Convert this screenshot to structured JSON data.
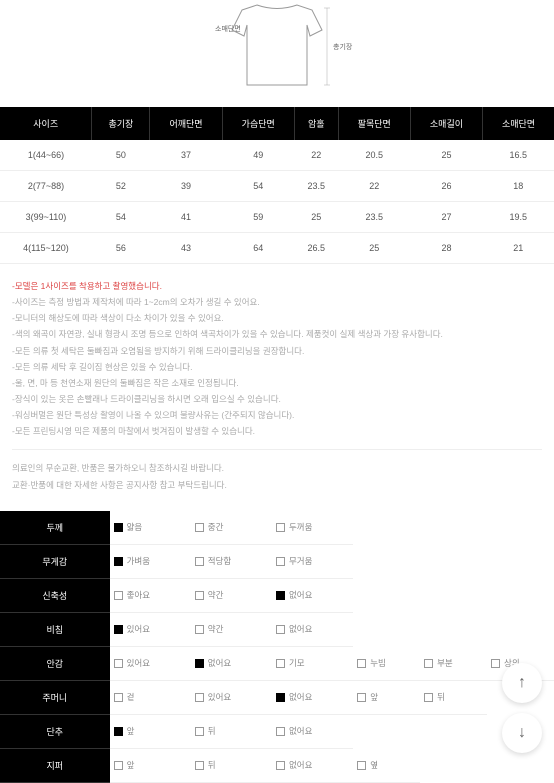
{
  "diagram": {
    "labels": {
      "shoulder": "소매단면",
      "length": "총기장"
    }
  },
  "sizeTable": {
    "headers": [
      "사이즈",
      "총기장",
      "어깨단면",
      "가슴단면",
      "암홀",
      "팔목단면",
      "소매길이",
      "소매단면"
    ],
    "rows": [
      [
        "1(44~66)",
        "50",
        "37",
        "49",
        "22",
        "20.5",
        "25",
        "16.5"
      ],
      [
        "2(77~88)",
        "52",
        "39",
        "54",
        "23.5",
        "22",
        "26",
        "18"
      ],
      [
        "3(99~110)",
        "54",
        "41",
        "59",
        "25",
        "23.5",
        "27",
        "19.5"
      ],
      [
        "4(115~120)",
        "56",
        "43",
        "64",
        "26.5",
        "25",
        "28",
        "21"
      ]
    ]
  },
  "notice": {
    "red": "-모델은 1사이즈를 착용하고 촬영했습니다.",
    "lines": [
      "-사이즈는 측정 방법과 제작처에 따라 1~2cm의 오차가 생길 수 있어요.",
      "-모니터의 해상도에 따라 색상이 다소 차이가 있을 수 있어요.",
      "-색의 왜곡이 자연광, 실내 형광시 조명 등으로 인하여 색곡차이가 있을 수 있습니다. 제품컷이 실제 색상과 가장 유사합니다.",
      "-모든 의류 첫 세탁은 둘빠짐과 오염됨을 방지하기 위해 드라이클리닝을 권장합니다.",
      "-모든 의류 세탁 후 길이짐 현상은 있을 수 있습니다.",
      "-울, 면, 마 등 천연소재 원단의 둘빠짐은 작은 소재로 인정됩니다.",
      "-장식이 있는 옷은 손빨래나 드라이클리닝을 하시면 오래 입으실 수 있습니다.",
      "-워싱버멀은 원단 특성상 촬영이 나올 수 있으며 불량사유는 (간주되지 않습니다).",
      "-모든 프린팅시영 믹은 제품의 마찰에서 벗겨짐이 발생할 수 있습니다."
    ],
    "footer": [
      "의료인의 무순교환, 반품은 물가하오니 참조하시길 바랍니다.",
      "교환·반품에 대한 자세한 사항은 공지사항 참고 부탁드립니다."
    ]
  },
  "attributes": {
    "rows": [
      {
        "label": "두께",
        "opts": [
          [
            "얇음",
            true
          ],
          [
            "중간",
            false
          ],
          [
            "두꺼움",
            false
          ]
        ]
      },
      {
        "label": "무게감",
        "opts": [
          [
            "가벼움",
            true
          ],
          [
            "적당함",
            false
          ],
          [
            "무거움",
            false
          ]
        ]
      },
      {
        "label": "신축성",
        "opts": [
          [
            "좋아요",
            false
          ],
          [
            "약간",
            false
          ],
          [
            "없어요",
            true
          ]
        ]
      },
      {
        "label": "비침",
        "opts": [
          [
            "있어요",
            true
          ],
          [
            "약간",
            false
          ],
          [
            "없어요",
            false
          ]
        ]
      },
      {
        "label": "안감",
        "opts": [
          [
            "있어요",
            false
          ],
          [
            "없어요",
            true
          ],
          [
            "기모",
            false
          ],
          [
            "누빔",
            false
          ],
          [
            "부분",
            false
          ],
          [
            "상의",
            false
          ]
        ]
      },
      {
        "label": "주머니",
        "opts": [
          [
            "겉",
            false
          ],
          [
            "있어요",
            false
          ],
          [
            "없어요",
            true
          ],
          [
            "앞",
            false
          ],
          [
            "뒤",
            false
          ]
        ]
      },
      {
        "label": "단추",
        "opts": [
          [
            "앞",
            true
          ],
          [
            "뒤",
            false
          ],
          [
            "없어요",
            false
          ]
        ]
      },
      {
        "label": "지퍼",
        "opts": [
          [
            "앞",
            false
          ],
          [
            "뒤",
            false
          ],
          [
            "없어요",
            false
          ],
          [
            "옆",
            false
          ]
        ]
      }
    ]
  }
}
